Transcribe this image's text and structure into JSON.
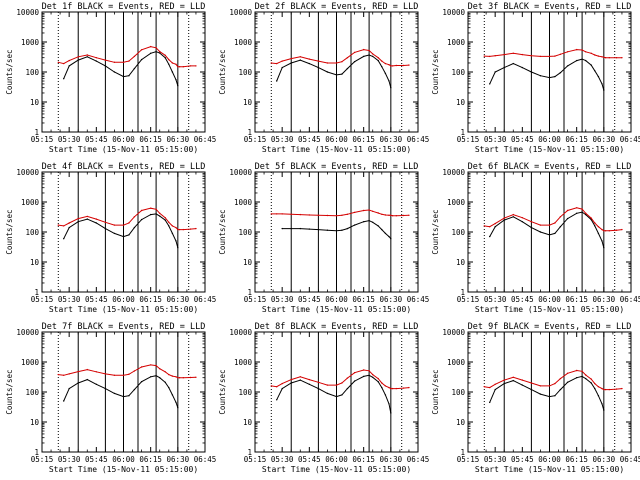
{
  "figure": {
    "colors": {
      "events": "#000000",
      "lld": "#d40000"
    }
  },
  "chart_data": [
    {
      "type": "line",
      "title": "Det 1f BLACK = Events, RED = LLD",
      "xlabel": "Start Time (15-Nov-11 05:15:00)",
      "ylabel": "Counts/sec",
      "x_ticks": [
        "05:15",
        "05:30",
        "05:45",
        "06:00",
        "06:15",
        "06:30",
        "06:45"
      ],
      "y_ticks": [
        "1",
        "10",
        "100",
        "1000",
        "10000"
      ],
      "ylim": [
        1,
        10000
      ],
      "yscale": "log",
      "x_minutes": [
        15,
        24,
        27,
        30,
        35,
        40,
        45,
        50,
        55,
        60,
        63,
        66,
        70,
        75,
        78,
        80,
        83,
        85,
        87,
        89,
        90,
        91,
        93,
        97,
        100
      ],
      "series": [
        {
          "name": "Events",
          "color": "#000000",
          "values": [
            null,
            null,
            60,
            160,
            250,
            320,
            230,
            160,
            100,
            70,
            75,
            130,
            260,
            420,
            480,
            430,
            300,
            180,
            100,
            55,
            35,
            null,
            null,
            null,
            null
          ]
        },
        {
          "name": "LLD",
          "color": "#d40000",
          "values": [
            null,
            210,
            190,
            240,
            320,
            370,
            300,
            250,
            210,
            210,
            230,
            330,
            550,
            700,
            640,
            480,
            360,
            260,
            200,
            180,
            150,
            150,
            150,
            160,
            160
          ]
        }
      ]
    },
    {
      "type": "line",
      "title": "Det 2f BLACK = Events, RED = LLD",
      "xlabel": "Start Time (15-Nov-11 05:15:00)",
      "ylabel": "Counts/sec",
      "x_ticks": [
        "05:15",
        "05:30",
        "05:45",
        "06:00",
        "06:15",
        "06:30",
        "06:45"
      ],
      "y_ticks": [
        "1",
        "10",
        "100",
        "1000",
        "10000"
      ],
      "ylim": [
        1,
        10000
      ],
      "yscale": "log",
      "x_minutes": [
        15,
        24,
        27,
        30,
        35,
        40,
        45,
        50,
        55,
        60,
        63,
        66,
        70,
        75,
        78,
        80,
        83,
        85,
        87,
        89,
        90,
        91,
        93,
        97,
        100
      ],
      "series": [
        {
          "name": "Events",
          "color": "#000000",
          "values": [
            null,
            null,
            50,
            140,
            200,
            250,
            190,
            140,
            100,
            80,
            85,
            130,
            220,
            330,
            370,
            330,
            240,
            150,
            90,
            50,
            30,
            null,
            null,
            null,
            null
          ]
        },
        {
          "name": "LLD",
          "color": "#d40000",
          "values": [
            null,
            200,
            190,
            230,
            280,
            320,
            270,
            230,
            200,
            200,
            220,
            300,
            450,
            560,
            520,
            400,
            300,
            230,
            190,
            175,
            160,
            160,
            165,
            165,
            170
          ]
        }
      ]
    },
    {
      "type": "line",
      "title": "Det 3f BLACK = Events, RED = LLD",
      "xlabel": "Start Time (15-Nov-11 05:15:00)",
      "ylabel": "Counts/sec",
      "x_ticks": [
        "05:15",
        "05:30",
        "05:45",
        "06:00",
        "06:15",
        "06:30",
        "06:45"
      ],
      "y_ticks": [
        "1",
        "10",
        "100",
        "1000",
        "10000"
      ],
      "ylim": [
        1,
        10000
      ],
      "yscale": "log",
      "x_minutes": [
        15,
        24,
        27,
        30,
        35,
        40,
        45,
        50,
        55,
        60,
        63,
        66,
        70,
        75,
        78,
        80,
        83,
        85,
        87,
        89,
        90,
        91,
        93,
        97,
        100
      ],
      "series": [
        {
          "name": "Events",
          "color": "#000000",
          "values": [
            null,
            null,
            40,
            100,
            140,
            190,
            140,
            100,
            75,
            65,
            70,
            95,
            160,
            240,
            270,
            240,
            170,
            110,
            70,
            40,
            25,
            null,
            null,
            null,
            null
          ]
        },
        {
          "name": "LLD",
          "color": "#d40000",
          "values": [
            null,
            340,
            330,
            350,
            380,
            420,
            380,
            350,
            330,
            330,
            340,
            390,
            470,
            560,
            540,
            470,
            420,
            370,
            340,
            320,
            310,
            300,
            300,
            300,
            300
          ]
        }
      ]
    },
    {
      "type": "line",
      "title": "Det 4f BLACK = Events, RED = LLD",
      "xlabel": "Start Time (15-Nov-11 05:15:00)",
      "ylabel": "Counts/sec",
      "x_ticks": [
        "05:15",
        "05:30",
        "05:45",
        "06:00",
        "06:15",
        "06:30",
        "06:45"
      ],
      "y_ticks": [
        "1",
        "10",
        "100",
        "1000",
        "10000"
      ],
      "ylim": [
        1,
        10000
      ],
      "yscale": "log",
      "x_minutes": [
        15,
        24,
        27,
        30,
        35,
        40,
        45,
        50,
        55,
        60,
        63,
        66,
        70,
        75,
        78,
        80,
        83,
        85,
        87,
        89,
        90,
        91,
        93,
        97,
        100
      ],
      "series": [
        {
          "name": "Events",
          "color": "#000000",
          "values": [
            null,
            null,
            60,
            140,
            220,
            270,
            200,
            130,
            90,
            70,
            80,
            140,
            260,
            380,
            400,
            340,
            250,
            160,
            90,
            50,
            30,
            null,
            null,
            null,
            null
          ]
        },
        {
          "name": "LLD",
          "color": "#d40000",
          "values": [
            null,
            170,
            160,
            200,
            280,
            330,
            270,
            210,
            170,
            170,
            200,
            320,
            520,
            620,
            570,
            420,
            300,
            210,
            160,
            140,
            120,
            120,
            120,
            125,
            130
          ]
        }
      ]
    },
    {
      "type": "line",
      "title": "Det 5f BLACK = Events, RED = LLD",
      "xlabel": "Start Time (15-Nov-11 05:15:00)",
      "ylabel": "Counts/sec",
      "x_ticks": [
        "05:15",
        "05:30",
        "05:45",
        "06:00",
        "06:15",
        "06:30",
        "06:45"
      ],
      "y_ticks": [
        "1",
        "10",
        "100",
        "1000",
        "10000"
      ],
      "ylim": [
        1,
        10000
      ],
      "yscale": "log",
      "x_minutes": [
        15,
        24,
        27,
        30,
        35,
        40,
        45,
        50,
        55,
        60,
        63,
        66,
        70,
        75,
        78,
        80,
        83,
        85,
        87,
        89,
        90,
        91,
        93,
        97,
        100
      ],
      "series": [
        {
          "name": "Events",
          "color": "#000000",
          "values": [
            null,
            null,
            null,
            130,
            130,
            130,
            125,
            120,
            115,
            110,
            115,
            130,
            170,
            220,
            240,
            210,
            160,
            120,
            90,
            70,
            60,
            null,
            null,
            null,
            null
          ]
        },
        {
          "name": "LLD",
          "color": "#d40000",
          "values": [
            null,
            400,
            400,
            400,
            390,
            380,
            370,
            360,
            355,
            350,
            360,
            390,
            450,
            520,
            540,
            490,
            430,
            390,
            370,
            360,
            360,
            350,
            350,
            355,
            360
          ]
        }
      ]
    },
    {
      "type": "line",
      "title": "Det 6f BLACK = Events, RED = LLD",
      "xlabel": "Start Time (15-Nov-11 05:15:00)",
      "ylabel": "Counts/sec",
      "x_ticks": [
        "05:15",
        "05:30",
        "05:45",
        "06:00",
        "06:15",
        "06:30",
        "06:45"
      ],
      "y_ticks": [
        "1",
        "10",
        "100",
        "1000",
        "10000"
      ],
      "ylim": [
        1,
        10000
      ],
      "yscale": "log",
      "x_minutes": [
        15,
        24,
        27,
        30,
        35,
        40,
        45,
        50,
        55,
        60,
        63,
        66,
        70,
        75,
        78,
        80,
        83,
        85,
        87,
        89,
        90,
        91,
        93,
        97,
        100
      ],
      "series": [
        {
          "name": "Events",
          "color": "#000000",
          "values": [
            null,
            null,
            70,
            150,
            250,
            320,
            220,
            140,
            100,
            80,
            90,
            150,
            280,
            420,
            460,
            380,
            260,
            160,
            90,
            50,
            30,
            null,
            null,
            null,
            null
          ]
        },
        {
          "name": "LLD",
          "color": "#d40000",
          "values": [
            null,
            160,
            150,
            190,
            290,
            380,
            300,
            220,
            170,
            170,
            200,
            320,
            520,
            640,
            580,
            420,
            290,
            200,
            150,
            120,
            110,
            110,
            110,
            115,
            120
          ]
        }
      ]
    },
    {
      "type": "line",
      "title": "Det 7f BLACK = Events, RED = LLD",
      "xlabel": "Start Time (15-Nov-11 05:15:00)",
      "ylabel": "Counts/sec",
      "x_ticks": [
        "05:15",
        "05:30",
        "05:45",
        "06:00",
        "06:15",
        "06:30",
        "06:45"
      ],
      "y_ticks": [
        "1",
        "10",
        "100",
        "1000",
        "10000"
      ],
      "ylim": [
        1,
        10000
      ],
      "yscale": "log",
      "x_minutes": [
        15,
        24,
        27,
        30,
        35,
        40,
        45,
        50,
        55,
        60,
        63,
        66,
        70,
        75,
        78,
        80,
        83,
        85,
        87,
        89,
        90,
        91,
        93,
        97,
        100
      ],
      "series": [
        {
          "name": "Events",
          "color": "#000000",
          "values": [
            null,
            null,
            50,
            130,
            200,
            260,
            180,
            130,
            90,
            70,
            75,
            120,
            220,
            320,
            350,
            300,
            210,
            140,
            80,
            45,
            30,
            null,
            null,
            null,
            null
          ]
        },
        {
          "name": "LLD",
          "color": "#d40000",
          "values": [
            null,
            380,
            360,
            400,
            480,
            560,
            470,
            400,
            360,
            360,
            390,
            500,
            680,
            800,
            760,
            600,
            470,
            380,
            340,
            320,
            300,
            300,
            300,
            305,
            310
          ]
        }
      ]
    },
    {
      "type": "line",
      "title": "Det 8f BLACK = Events, RED = LLD",
      "xlabel": "Start Time (15-Nov-11 05:15:00)",
      "ylabel": "Counts/sec",
      "x_ticks": [
        "05:15",
        "05:30",
        "05:45",
        "06:00",
        "06:15",
        "06:30",
        "06:45"
      ],
      "y_ticks": [
        "1",
        "10",
        "100",
        "1000",
        "10000"
      ],
      "ylim": [
        1,
        10000
      ],
      "yscale": "log",
      "x_minutes": [
        15,
        24,
        27,
        30,
        35,
        40,
        45,
        50,
        55,
        60,
        63,
        66,
        70,
        75,
        78,
        80,
        83,
        85,
        87,
        89,
        90,
        91,
        93,
        97,
        100
      ],
      "series": [
        {
          "name": "Events",
          "color": "#000000",
          "values": [
            null,
            null,
            55,
            130,
            200,
            250,
            180,
            130,
            90,
            70,
            80,
            130,
            230,
            330,
            360,
            310,
            220,
            140,
            80,
            40,
            20,
            null,
            null,
            null,
            null
          ]
        },
        {
          "name": "LLD",
          "color": "#d40000",
          "values": [
            null,
            160,
            150,
            190,
            260,
            320,
            260,
            210,
            170,
            170,
            200,
            290,
            440,
            540,
            510,
            380,
            280,
            200,
            160,
            140,
            130,
            130,
            130,
            135,
            140
          ]
        }
      ]
    },
    {
      "type": "line",
      "title": "Det 9f BLACK = Events, RED = LLD",
      "xlabel": "Start Time (15-Nov-11 05:15:00)",
      "ylabel": "Counts/sec",
      "x_ticks": [
        "05:15",
        "05:30",
        "05:45",
        "06:00",
        "06:15",
        "06:30",
        "06:45"
      ],
      "y_ticks": [
        "1",
        "10",
        "100",
        "1000",
        "10000"
      ],
      "ylim": [
        1,
        10000
      ],
      "yscale": "log",
      "x_minutes": [
        15,
        24,
        27,
        30,
        35,
        40,
        45,
        50,
        55,
        60,
        63,
        66,
        70,
        75,
        78,
        80,
        83,
        85,
        87,
        89,
        90,
        91,
        93,
        97,
        100
      ],
      "series": [
        {
          "name": "Events",
          "color": "#000000",
          "values": [
            null,
            null,
            45,
            120,
            190,
            240,
            170,
            120,
            85,
            70,
            75,
            120,
            210,
            300,
            330,
            280,
            200,
            130,
            75,
            40,
            25,
            null,
            null,
            null,
            null
          ]
        },
        {
          "name": "LLD",
          "color": "#d40000",
          "values": [
            null,
            150,
            140,
            180,
            250,
            310,
            250,
            200,
            160,
            160,
            190,
            280,
            420,
            520,
            490,
            370,
            270,
            190,
            150,
            130,
            120,
            120,
            120,
            125,
            130
          ]
        }
      ]
    }
  ]
}
